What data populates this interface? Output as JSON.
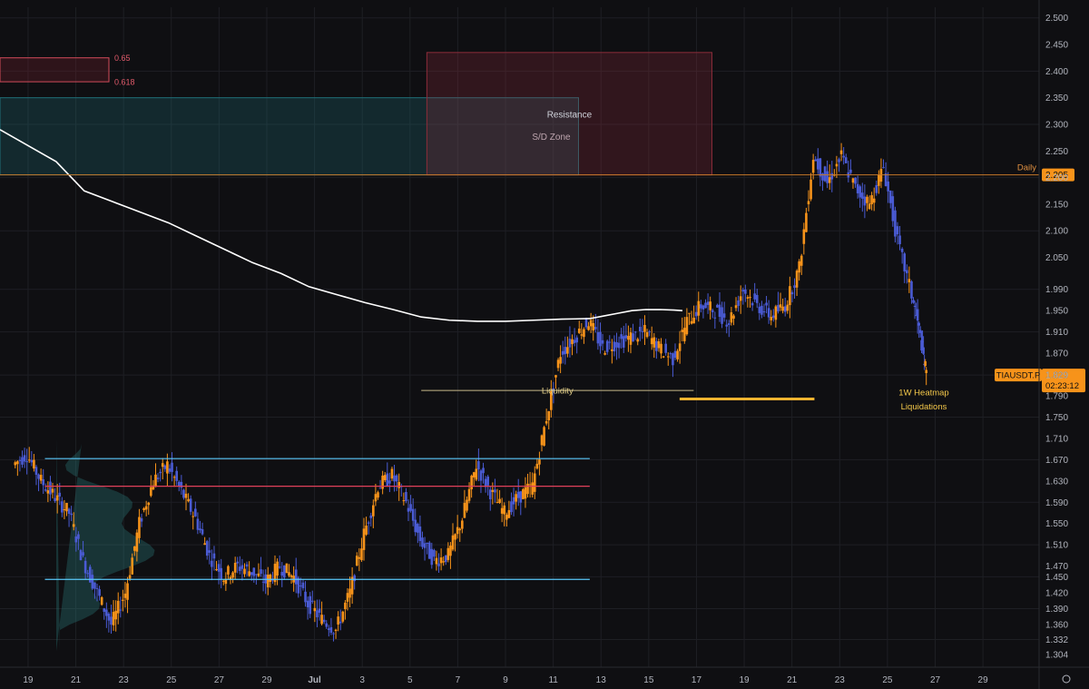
{
  "chart_data": {
    "type": "candlestick",
    "symbol": "TIAUSDT.P",
    "price_axis": {
      "min": 1.28,
      "max": 2.52,
      "ticks": [
        "2.500",
        "2.450",
        "2.400",
        "2.350",
        "2.300",
        "2.250",
        "2.200",
        "2.150",
        "2.100",
        "2.050",
        "1.990",
        "1.950",
        "1.910",
        "1.870",
        "1.829",
        "1.790",
        "1.750",
        "1.710",
        "1.670",
        "1.630",
        "1.590",
        "1.550",
        "1.510",
        "1.470",
        "1.450",
        "1.420",
        "1.390",
        "1.360",
        "1.332",
        "1.304"
      ]
    },
    "time_axis": {
      "labels": [
        "19",
        "21",
        "23",
        "25",
        "27",
        "29",
        "Jul",
        "3",
        "5",
        "7",
        "9",
        "11",
        "13",
        "15",
        "17",
        "19",
        "21",
        "23",
        "25",
        "27",
        "29"
      ]
    },
    "last_price": {
      "label": "TIAUSDT.P",
      "value": "1.829",
      "countdown": "02:23:12",
      "color": "#f7931a"
    },
    "daily_level": {
      "label": "Daily",
      "value": "2.205",
      "price": 2.205,
      "color": "#f7931a"
    },
    "fib_levels": [
      {
        "label": "0.65",
        "price": 2.425
      },
      {
        "label": "0.618",
        "price": 2.38
      }
    ],
    "zones": [
      {
        "label": "S/D Zone",
        "price_top": 2.35,
        "price_bottom": 2.205,
        "day_start": 0,
        "day_end": 20.6,
        "color": "#1f6f78"
      },
      {
        "label": "Resistance",
        "price_top": 2.435,
        "price_bottom": 2.205,
        "day_start": 15.2,
        "day_end": 25.35,
        "color": "#8b2c3a"
      }
    ],
    "annotations": [
      {
        "label": "Liquidity",
        "price": 1.8,
        "day_start": 14.0,
        "day_end": 23.7
      },
      {
        "label": "1W Heatmap",
        "price": 1.795
      },
      {
        "label": "Liquidations",
        "price": 1.78,
        "day_start": 23.2,
        "day_end": 28.0
      }
    ],
    "range_lines": [
      {
        "price": 1.672,
        "color": "#5ac8fa"
      },
      {
        "price": 1.62,
        "color": "#e0405a"
      },
      {
        "price": 1.445,
        "color": "#5ac8fa"
      }
    ],
    "colors": {
      "up": "#f7931a",
      "down": "#4a5bd4",
      "ma": "#ffffff",
      "background": "#0f0f12",
      "grid": "#1e1f24"
    },
    "moving_average": [
      [
        0,
        2.29
      ],
      [
        1,
        2.26
      ],
      [
        2,
        2.23
      ],
      [
        3,
        2.175
      ],
      [
        4,
        2.155
      ],
      [
        5,
        2.135
      ],
      [
        6,
        2.115
      ],
      [
        7,
        2.09
      ],
      [
        8,
        2.065
      ],
      [
        9,
        2.04
      ],
      [
        10,
        2.02
      ],
      [
        11,
        1.995
      ],
      [
        12,
        1.98
      ],
      [
        13,
        1.965
      ],
      [
        14,
        1.952
      ],
      [
        15,
        1.938
      ],
      [
        16,
        1.932
      ],
      [
        17,
        1.93
      ],
      [
        18,
        1.93
      ],
      [
        19,
        1.932
      ],
      [
        20,
        1.934
      ],
      [
        21,
        1.935
      ],
      [
        21.5,
        1.94
      ],
      [
        22,
        1.945
      ],
      [
        22.5,
        1.95
      ],
      [
        23,
        1.952
      ],
      [
        23.5,
        1.952
      ],
      [
        24,
        1.951
      ],
      [
        24.3,
        1.95
      ]
    ],
    "candles_daily_anchor": [
      [
        -0.5,
        1.66
      ],
      [
        0,
        1.68
      ],
      [
        0.5,
        1.63
      ],
      [
        1,
        1.6
      ],
      [
        1.5,
        1.57
      ],
      [
        2,
        1.48
      ],
      [
        2.5,
        1.42
      ],
      [
        3,
        1.36
      ],
      [
        3.5,
        1.42
      ],
      [
        4,
        1.55
      ],
      [
        4.5,
        1.63
      ],
      [
        5,
        1.66
      ],
      [
        5.5,
        1.61
      ],
      [
        6,
        1.56
      ],
      [
        6.5,
        1.49
      ],
      [
        7,
        1.45
      ],
      [
        7.5,
        1.47
      ],
      [
        8,
        1.46
      ],
      [
        8.5,
        1.44
      ],
      [
        9,
        1.47
      ],
      [
        9.5,
        1.45
      ],
      [
        10,
        1.4
      ],
      [
        10.5,
        1.37
      ],
      [
        11,
        1.35
      ],
      [
        11.5,
        1.42
      ],
      [
        12,
        1.53
      ],
      [
        12.5,
        1.62
      ],
      [
        13,
        1.64
      ],
      [
        13.5,
        1.59
      ],
      [
        14,
        1.52
      ],
      [
        14.5,
        1.48
      ],
      [
        15,
        1.49
      ],
      [
        15.5,
        1.56
      ],
      [
        16,
        1.66
      ],
      [
        16.5,
        1.61
      ],
      [
        17,
        1.57
      ],
      [
        17.5,
        1.6
      ],
      [
        18,
        1.62
      ],
      [
        18.5,
        1.75
      ],
      [
        19,
        1.87
      ],
      [
        19.5,
        1.9
      ],
      [
        20,
        1.93
      ],
      [
        20.5,
        1.88
      ],
      [
        21,
        1.89
      ],
      [
        21.5,
        1.9
      ],
      [
        22,
        1.91
      ],
      [
        22.5,
        1.88
      ],
      [
        23,
        1.86
      ],
      [
        23.5,
        1.93
      ],
      [
        24,
        1.96
      ],
      [
        24.5,
        1.95
      ],
      [
        25,
        1.93
      ],
      [
        25.5,
        1.99
      ],
      [
        26,
        1.96
      ],
      [
        26.5,
        1.94
      ],
      [
        27,
        1.96
      ],
      [
        27.5,
        2.03
      ],
      [
        28,
        2.24
      ],
      [
        28.5,
        2.19
      ],
      [
        29,
        2.24
      ],
      [
        29.5,
        2.18
      ],
      [
        30,
        2.15
      ],
      [
        30.5,
        2.22
      ],
      [
        31,
        2.08
      ],
      [
        31.5,
        1.98
      ],
      [
        31.8,
        1.9
      ],
      [
        32,
        1.83
      ]
    ]
  }
}
